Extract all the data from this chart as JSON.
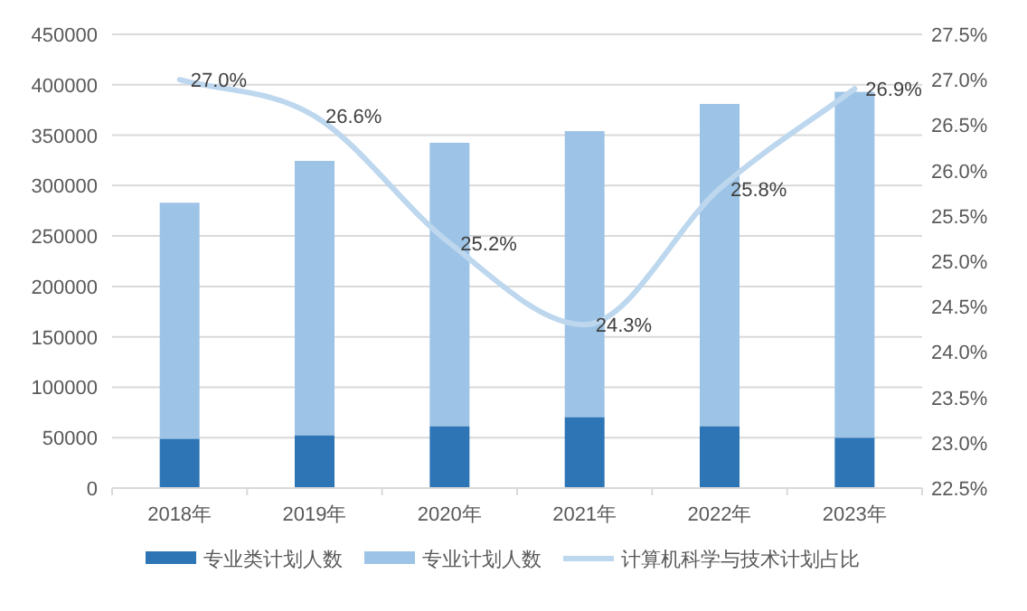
{
  "chart_data": {
    "type": "bar",
    "stacked": true,
    "categories": [
      "2018年",
      "2019年",
      "2020年",
      "2021年",
      "2022年",
      "2023年"
    ],
    "series": [
      {
        "name": "专业类计划人数",
        "color": "#2e75b6",
        "values": [
          49000,
          52500,
          61500,
          70500,
          61500,
          50000
        ]
      },
      {
        "name": "专业计划人数",
        "color": "#9dc3e6",
        "values": [
          234000,
          272000,
          281000,
          283500,
          319500,
          343000
        ]
      },
      {
        "name": "计算机科学与技术计划占比",
        "type": "line",
        "axis": "y2",
        "color": "#bdd7ee",
        "values": [
          27.0,
          26.6,
          25.2,
          24.3,
          25.8,
          26.9
        ],
        "value_labels": [
          "27.0%",
          "26.6%",
          "25.2%",
          "24.3%",
          "25.8%",
          "26.9%"
        ]
      }
    ],
    "ylim": [
      0,
      450000
    ],
    "yticks": [
      0,
      50000,
      100000,
      150000,
      200000,
      250000,
      300000,
      350000,
      400000,
      450000
    ],
    "y2lim": [
      22.5,
      27.5
    ],
    "y2ticks": [
      {
        "value": 22.5,
        "label": "22.5%"
      },
      {
        "value": 23.0,
        "label": "23.0%"
      },
      {
        "value": 23.5,
        "label": "23.5%"
      },
      {
        "value": 24.0,
        "label": "24.0%"
      },
      {
        "value": 24.5,
        "label": "24.5%"
      },
      {
        "value": 25.0,
        "label": "25.0%"
      },
      {
        "value": 25.5,
        "label": "25.5%"
      },
      {
        "value": 26.0,
        "label": "26.0%"
      },
      {
        "value": 26.5,
        "label": "26.5%"
      },
      {
        "value": 27.0,
        "label": "27.0%"
      },
      {
        "value": 27.5,
        "label": "27.5%"
      }
    ],
    "grid": "y",
    "legend": "bottom",
    "marker": "none",
    "line_style": "solid"
  }
}
